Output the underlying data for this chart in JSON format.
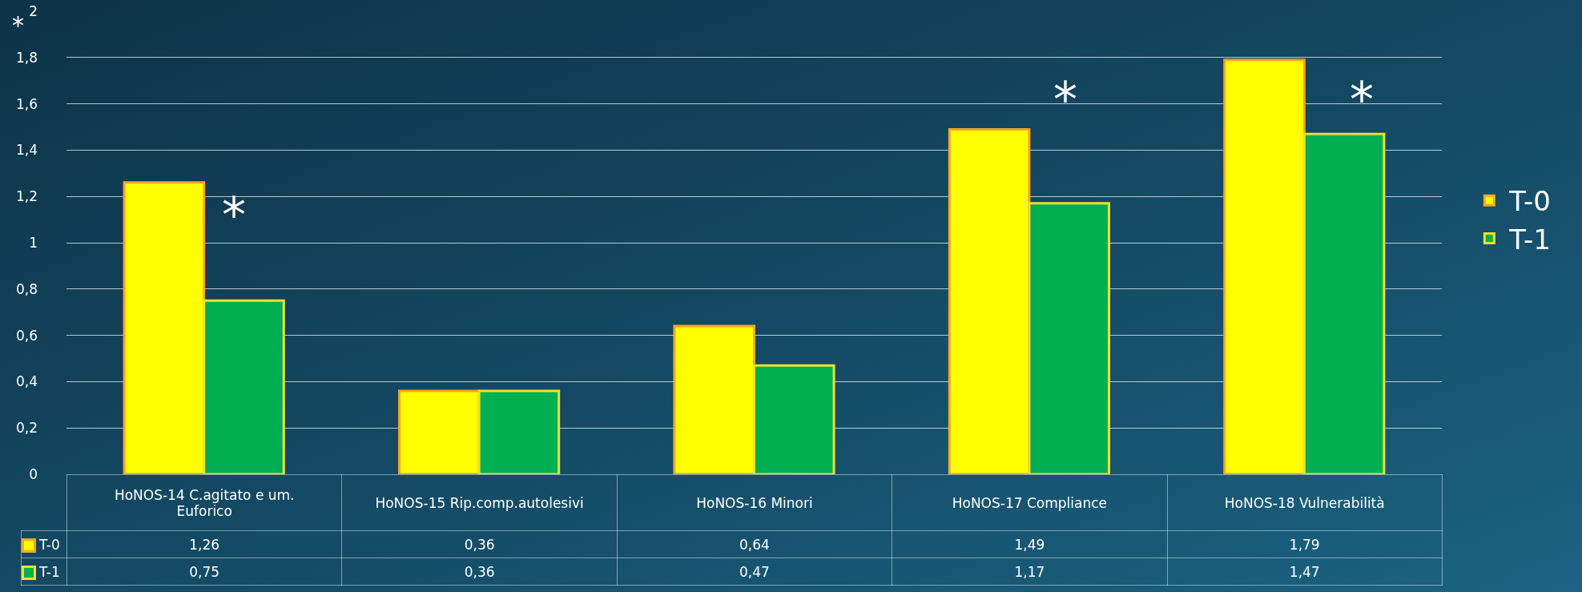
{
  "chart_data": {
    "type": "bar",
    "categories": [
      "HoNOS-14 C.agitato e um. Euforico",
      "HoNOS-15 Rip.comp.autolesivi",
      "HoNOS-16 Minori",
      "HoNOS-17 Compliance",
      "HoNOS-18 Vulnerabilità"
    ],
    "series": [
      {
        "name": "T-0",
        "color": "#ffff00",
        "values": [
          1.26,
          0.36,
          0.64,
          1.49,
          1.79
        ],
        "value_labels": [
          "1,26",
          "0,36",
          "0,64",
          "1,49",
          "1,79"
        ]
      },
      {
        "name": "T-1",
        "color": "#00b050",
        "values": [
          0.75,
          0.36,
          0.47,
          1.17,
          1.47
        ],
        "value_labels": [
          "0,75",
          "0,36",
          "0,47",
          "1,17",
          "1,47"
        ]
      }
    ],
    "ylim": [
      0,
      2
    ],
    "yticks": [
      0,
      {
        "value": 0.2,
        "label": "0,2"
      },
      {
        "value": 0.4,
        "label": "0,4"
      },
      {
        "value": 0.6,
        "label": "0,6"
      },
      {
        "value": 0.8,
        "label": "0,8"
      },
      1,
      {
        "value": 1.2,
        "label": "1,2"
      },
      {
        "value": 1.4,
        "label": "1,4"
      },
      {
        "value": 1.6,
        "label": "1,6"
      },
      {
        "value": 1.8,
        "label": "1,8"
      },
      2
    ],
    "grid": "y",
    "legend": "right",
    "annotations": [
      "*",
      "*",
      "*",
      "*"
    ]
  }
}
